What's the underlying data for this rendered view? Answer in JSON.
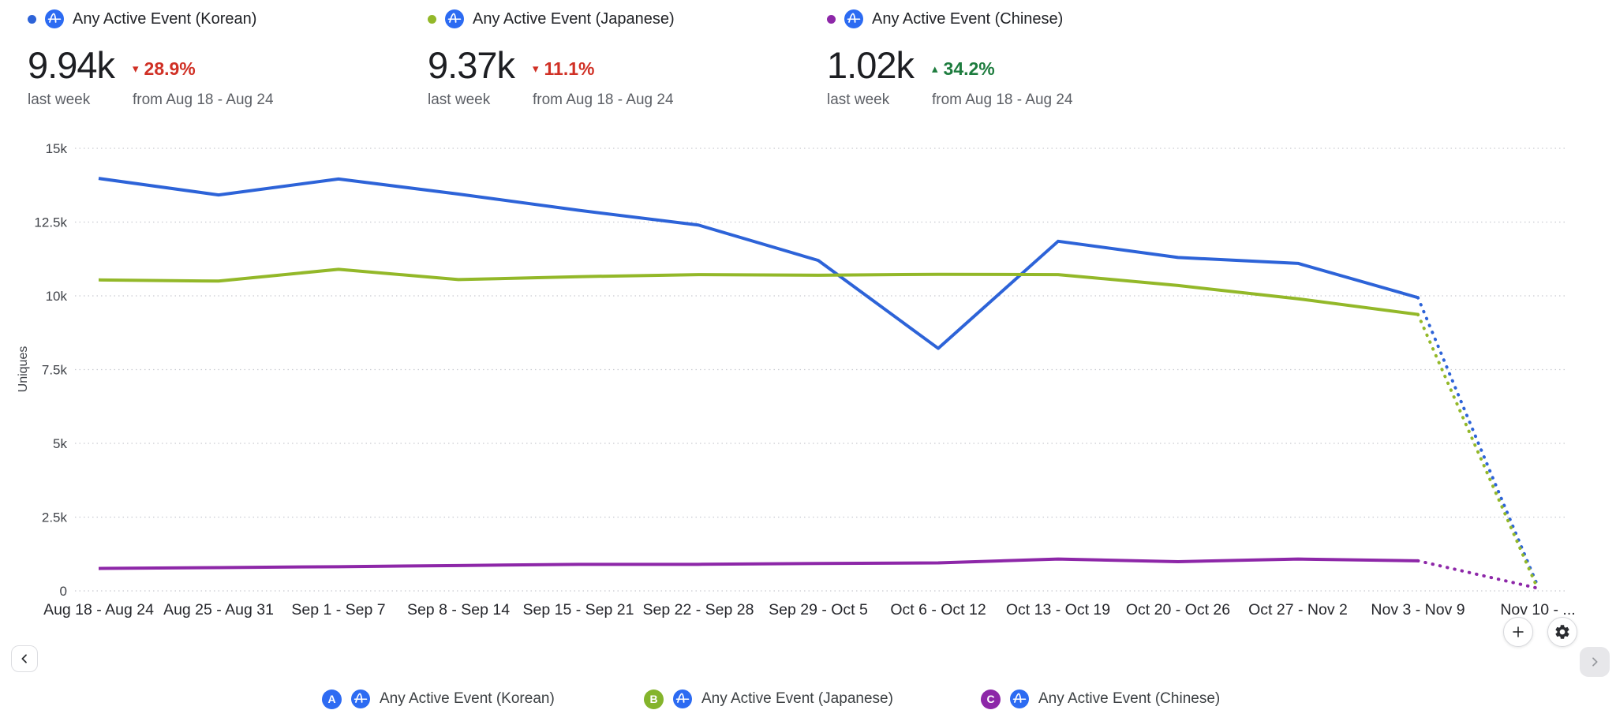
{
  "colors": {
    "korean_blue": "#2d63d8",
    "japanese_green": "#93b829",
    "chinese_purple": "#8d27a8",
    "amplitude_icon_blue": "#2c6bf2",
    "negative_red": "#d03025",
    "positive_green": "#1d7c3e",
    "grid_gray": "#c9cbd1"
  },
  "metrics": [
    {
      "dot_color": "#2d63d8",
      "label": "Any Active Event (Korean)",
      "value": "9.94k",
      "period": "last week",
      "change_arrow": "▾",
      "change": "28.9%",
      "change_color": "#d03025",
      "compare": "from Aug 18 - Aug 24"
    },
    {
      "dot_color": "#93b829",
      "label": "Any Active Event (Japanese)",
      "value": "9.37k",
      "period": "last week",
      "change_arrow": "▾",
      "change": "11.1%",
      "change_color": "#d03025",
      "compare": "from Aug 18 - Aug 24"
    },
    {
      "dot_color": "#8d27a8",
      "label": "Any Active Event (Chinese)",
      "value": "1.02k",
      "period": "last week",
      "change_arrow": "▴",
      "change": "34.2%",
      "change_color": "#1d7c3e",
      "compare": "from Aug 18 - Aug 24"
    }
  ],
  "chart_data": {
    "type": "line",
    "title": "",
    "xlabel": "",
    "ylabel": "Uniques",
    "ylim": [
      0,
      15000
    ],
    "ytick_labels": [
      "0",
      "2.5k",
      "5k",
      "7.5k",
      "10k",
      "12.5k",
      "15k"
    ],
    "grid": "dotted-horizontal",
    "legend_position": "bottom",
    "categories": [
      "Aug 18 - Aug 24",
      "Aug 25 - Aug 31",
      "Sep 1 - Sep 7",
      "Sep 8 - Sep 14",
      "Sep 15 - Sep 21",
      "Sep 22 - Sep 28",
      "Sep 29 - Oct 5",
      "Oct 6 - Oct 12",
      "Oct 13 - Oct 19",
      "Oct 20 - Oct 26",
      "Oct 27 - Nov 2",
      "Nov 3 - Nov 9",
      "Nov 10 - ..."
    ],
    "note": "final segment (Nov 3 - Nov 9 → Nov 10 - ...) is rendered dotted, indicating a partial week",
    "series": [
      {
        "name": "Any Active Event (Korean)",
        "color": "#2d63d8",
        "values": [
          13980,
          13420,
          13960,
          13450,
          12900,
          12400,
          11200,
          8220,
          11850,
          11300,
          11100,
          9940,
          150
        ]
      },
      {
        "name": "Any Active Event (Japanese)",
        "color": "#93b829",
        "values": [
          10540,
          10500,
          10900,
          10550,
          10650,
          10720,
          10700,
          10730,
          10720,
          10350,
          9900,
          9370,
          60
        ]
      },
      {
        "name": "Any Active Event (Chinese)",
        "color": "#8d27a8",
        "values": [
          760,
          790,
          820,
          860,
          900,
          900,
          930,
          950,
          1080,
          990,
          1080,
          1020,
          90
        ]
      }
    ]
  },
  "legend": [
    {
      "badge": "A",
      "badge_color": "#2e6bf2",
      "label": "Any Active Event (Korean)"
    },
    {
      "badge": "B",
      "badge_color": "#84b42c",
      "label": "Any Active Event (Japanese)"
    },
    {
      "badge": "C",
      "badge_color": "#8d27a8",
      "label": "Any Active Event (Chinese)"
    }
  ],
  "controls": {
    "prev_page": "chevron-left",
    "next_page": "chevron-right",
    "add": "plus",
    "settings": "gear"
  }
}
